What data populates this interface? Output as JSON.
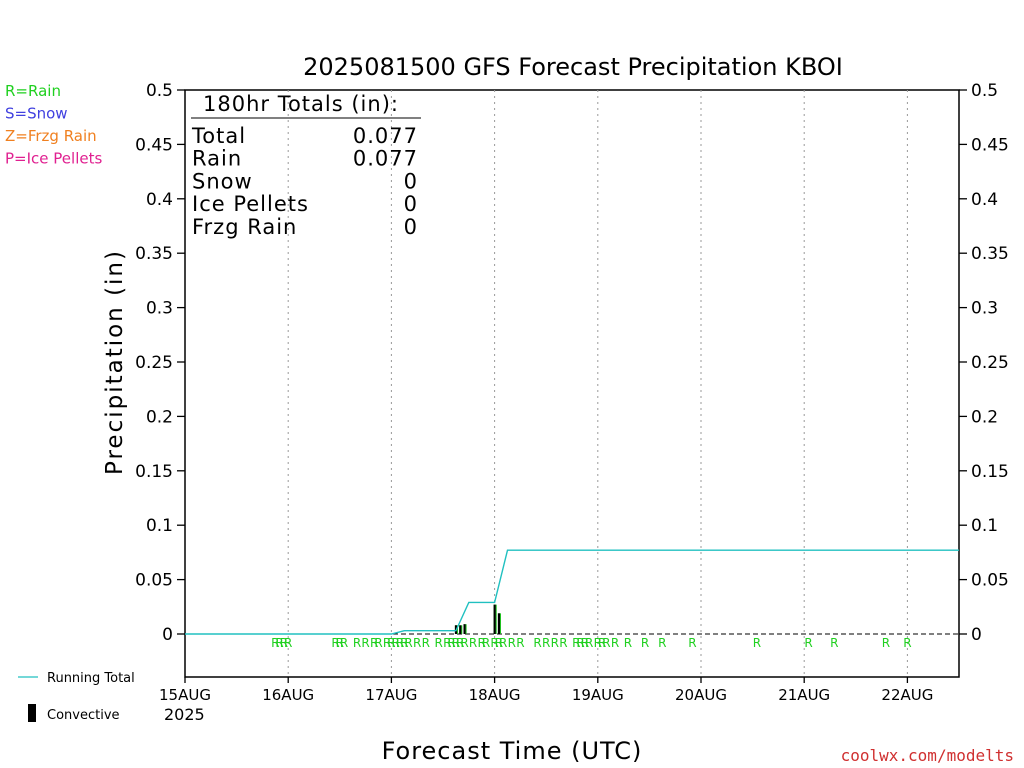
{
  "chart_data": {
    "type": "bar",
    "title": "2025081500 GFS Forecast Precipitation KBOI",
    "xlabel": "Forecast Time (UTC)",
    "ylabel": "Precipitation (in)",
    "ylim": [
      -0.04,
      0.5
    ],
    "yticks": [
      "0.5",
      "0.45",
      "0.4",
      "0.35",
      "0.3",
      "0.25",
      "0.2",
      "0.15",
      "0.1",
      "0.05",
      "0"
    ],
    "ytick_values": [
      0.5,
      0.45,
      0.4,
      0.35,
      0.3,
      0.25,
      0.2,
      0.15,
      0.1,
      0.05,
      0
    ],
    "xlim_hours": [
      0,
      180
    ],
    "xticks": [
      {
        "label": "15AUG",
        "hour": 0
      },
      {
        "label": "16AUG",
        "hour": 24
      },
      {
        "label": "17AUG",
        "hour": 48
      },
      {
        "label": "18AUG",
        "hour": 72
      },
      {
        "label": "19AUG",
        "hour": 96
      },
      {
        "label": "20AUG",
        "hour": 120
      },
      {
        "label": "21AUG",
        "hour": 144
      },
      {
        "label": "22AUG",
        "hour": 168
      }
    ],
    "year_label": "2025",
    "grid": true,
    "running_total": {
      "name": "Running Total",
      "color": "#20c0c0",
      "points": [
        [
          0,
          0
        ],
        [
          48,
          0
        ],
        [
          51,
          0.003
        ],
        [
          63,
          0.003
        ],
        [
          66,
          0.029
        ],
        [
          72,
          0.029
        ],
        [
          75,
          0.077
        ],
        [
          180,
          0.077
        ]
      ]
    },
    "convective": {
      "name": "Convective",
      "color": "#000000",
      "bars": [
        {
          "hour": 63,
          "value": 0.008
        },
        {
          "hour": 64,
          "value": 0.008
        },
        {
          "hour": 65,
          "value": 0.009
        },
        {
          "hour": 72,
          "value": 0.027
        },
        {
          "hour": 73,
          "value": 0.019
        }
      ]
    },
    "ptype_markers": {
      "letter": "R",
      "color": "#20d020",
      "hours": [
        21,
        22,
        23,
        24,
        35,
        36,
        37,
        40,
        42,
        44,
        45,
        47,
        48,
        49,
        50,
        51,
        52,
        54,
        56,
        59,
        61,
        62,
        63,
        64,
        65,
        67,
        69,
        70,
        72,
        73,
        74,
        76,
        78,
        82,
        84,
        86,
        88,
        91,
        92,
        93,
        94,
        96,
        97,
        98,
        100,
        103,
        107,
        111,
        118,
        133,
        145,
        151,
        163,
        168
      ]
    },
    "legend_left": [
      {
        "label": "R=Rain",
        "color": "#20d020"
      },
      {
        "label": "S=Snow",
        "color": "#4040e0"
      },
      {
        "label": "Z=Frzg Rain",
        "color": "#f08020"
      },
      {
        "label": "P=Ice Pellets",
        "color": "#e02090"
      }
    ],
    "legend_bottom": {
      "running_total_label": "Running Total",
      "convective_label": "Convective"
    },
    "totals_box": {
      "heading": "180hr Totals (in):",
      "rows": [
        {
          "label": "Total",
          "value": "0.077"
        },
        {
          "label": "Rain",
          "value": "0.077"
        },
        {
          "label": "Snow",
          "value": "0"
        },
        {
          "label": "Ice Pellets",
          "value": "0"
        },
        {
          "label": "Frzg Rain",
          "value": "0"
        }
      ]
    },
    "credit": "coolwx.com/modelts",
    "credit_color": "#d03030"
  }
}
